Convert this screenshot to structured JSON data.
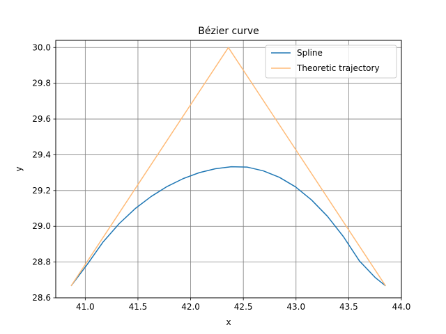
{
  "chart_data": {
    "type": "line",
    "title": "Bézier curve",
    "xlabel": "x",
    "ylabel": "y",
    "xlim": [
      40.72,
      44.0
    ],
    "ylim": [
      28.6,
      30.04
    ],
    "xticks": [
      41.0,
      41.5,
      42.0,
      42.5,
      43.0,
      43.5,
      44.0
    ],
    "yticks": [
      28.6,
      28.8,
      29.0,
      29.2,
      29.4,
      29.6,
      29.8,
      30.0
    ],
    "xtick_labels": [
      "41.0",
      "41.5",
      "42.0",
      "42.5",
      "43.0",
      "43.5",
      "44.0"
    ],
    "ytick_labels": [
      "28.6",
      "28.8",
      "29.0",
      "29.2",
      "29.4",
      "29.6",
      "29.8",
      "30.0"
    ],
    "grid": true,
    "legend_position": "top-right",
    "series": [
      {
        "name": "Spline",
        "color": "#1f77b4",
        "x": [
          40.866,
          41.018,
          41.17,
          41.322,
          41.474,
          41.626,
          41.778,
          41.93,
          42.082,
          42.234,
          42.386,
          42.538,
          42.69,
          42.842,
          42.994,
          43.146,
          43.298,
          43.45,
          43.602,
          43.754,
          43.85
        ],
        "y": [
          28.667,
          28.786,
          28.913,
          29.015,
          29.099,
          29.167,
          29.223,
          29.267,
          29.3,
          29.322,
          29.333,
          29.331,
          29.31,
          29.274,
          29.221,
          29.148,
          29.056,
          28.942,
          28.806,
          28.712,
          28.667
        ]
      },
      {
        "name": "Theoretic trajectory",
        "color": "#ffbb78",
        "x": [
          40.866,
          42.358,
          43.85
        ],
        "y": [
          28.667,
          30.0,
          28.667
        ]
      }
    ]
  }
}
